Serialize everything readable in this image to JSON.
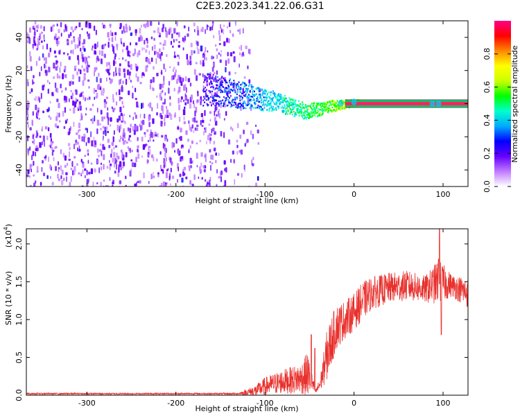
{
  "title": "C2E3.2023.341.22.06.G31",
  "chart_data": [
    {
      "type": "heatmap",
      "xlabel": "Height of straight line (km)",
      "ylabel": "Frequency (Hz)",
      "xlim": [
        -368,
        128
      ],
      "ylim": [
        -50,
        50
      ],
      "xticks": [
        -300,
        -200,
        -100,
        0,
        100
      ],
      "yticks": [
        -40,
        -20,
        0,
        20,
        40
      ],
      "colorbar": {
        "label": "Normalized spectral amplitude",
        "range": [
          0.0,
          1.0
        ],
        "ticks": [
          0.0,
          0.2,
          0.4,
          0.6,
          0.8
        ],
        "colors": [
          "#ffffff",
          "#c07aff",
          "#6600ff",
          "#0000ff",
          "#00aaff",
          "#00ffcc",
          "#00ff00",
          "#ccff00",
          "#ffff00",
          "#ff8800",
          "#ff0000",
          "#ff0088"
        ]
      },
      "features": {
        "noise_region_x": [
          -368,
          -120
        ],
        "signal_trace": [
          {
            "x": -170,
            "f": 9
          },
          {
            "x": -150,
            "f": 8
          },
          {
            "x": -130,
            "f": 6
          },
          {
            "x": -110,
            "f": 4
          },
          {
            "x": -90,
            "f": 2
          },
          {
            "x": -70,
            "f": -2
          },
          {
            "x": -55,
            "f": -4
          },
          {
            "x": -40,
            "f": -3
          },
          {
            "x": -25,
            "f": -1
          },
          {
            "x": -10,
            "f": 0
          },
          {
            "x": 0,
            "f": 1
          },
          {
            "x": 128,
            "f": 0
          }
        ]
      }
    },
    {
      "type": "line",
      "xlabel": "Height of straight line (km)",
      "ylabel": "SNR (10 * v/v)",
      "scale_label": "(x10",
      "scale_exponent": "4",
      "scale_suffix": ")",
      "xlim": [
        -368,
        128
      ],
      "ylim": [
        0.0,
        2.2
      ],
      "xticks": [
        -300,
        -200,
        -100,
        0,
        100
      ],
      "ytick_labels": [
        "0.0",
        "0.5",
        "1.0",
        "1.5",
        "2.0"
      ],
      "yticks": [
        0.0,
        0.5,
        1.0,
        1.5,
        2.0
      ],
      "color": "#e8302c",
      "envelope": [
        {
          "x": -368,
          "mean": 0.02,
          "amp": 0.01
        },
        {
          "x": -130,
          "mean": 0.02,
          "amp": 0.01
        },
        {
          "x": -110,
          "mean": 0.06,
          "amp": 0.08
        },
        {
          "x": -100,
          "mean": 0.12,
          "amp": 0.12
        },
        {
          "x": -80,
          "mean": 0.18,
          "amp": 0.16
        },
        {
          "x": -60,
          "mean": 0.22,
          "amp": 0.2
        },
        {
          "x": -52,
          "mean": 0.28,
          "amp": 0.3
        },
        {
          "x": -48,
          "mean": 0.18,
          "amp": 0.15
        },
        {
          "x": -43,
          "mean": 0.05,
          "amp": 0.03
        },
        {
          "x": -38,
          "mean": 0.15,
          "amp": 0.1
        },
        {
          "x": -30,
          "mean": 0.55,
          "amp": 0.35
        },
        {
          "x": -20,
          "mean": 0.9,
          "amp": 0.3
        },
        {
          "x": -10,
          "mean": 1.0,
          "amp": 0.25
        },
        {
          "x": 0,
          "mean": 1.1,
          "amp": 0.25
        },
        {
          "x": 10,
          "mean": 1.25,
          "amp": 0.25
        },
        {
          "x": 20,
          "mean": 1.35,
          "amp": 0.22
        },
        {
          "x": 40,
          "mean": 1.42,
          "amp": 0.2
        },
        {
          "x": 60,
          "mean": 1.45,
          "amp": 0.2
        },
        {
          "x": 80,
          "mean": 1.4,
          "amp": 0.18
        },
        {
          "x": 95,
          "mean": 1.5,
          "amp": 0.3
        },
        {
          "x": 110,
          "mean": 1.45,
          "amp": 0.15
        },
        {
          "x": 128,
          "mean": 1.35,
          "amp": 0.2
        }
      ],
      "peaks": [
        {
          "x": -48,
          "y": 0.8
        },
        {
          "x": -44,
          "y": 0.62
        },
        {
          "x": 96,
          "y": 2.2
        },
        {
          "x": 95,
          "y": 1.8
        },
        {
          "x": 98,
          "y": 0.8
        }
      ]
    }
  ]
}
